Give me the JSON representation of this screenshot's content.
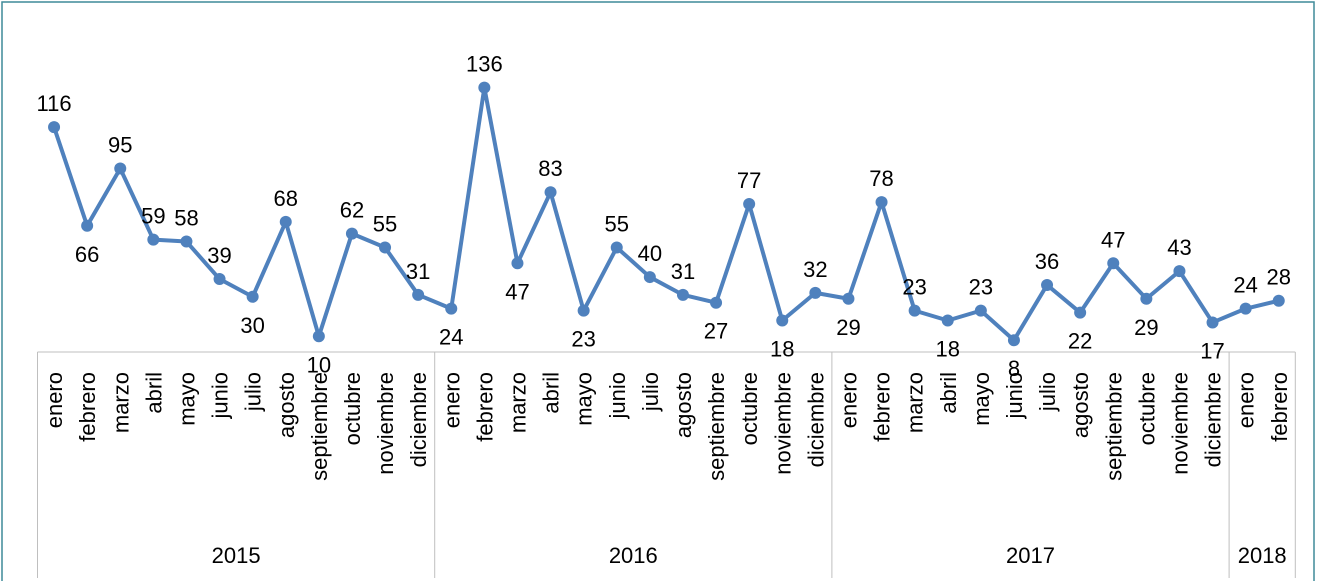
{
  "chart_data": {
    "type": "line",
    "groups": [
      {
        "label": "2015",
        "categories": [
          "enero",
          "febrero",
          "marzo",
          "abril",
          "mayo",
          "junio",
          "julio",
          "agosto",
          "septiembre",
          "octubre",
          "noviembre",
          "diciembre"
        ]
      },
      {
        "label": "2016",
        "categories": [
          "enero",
          "febrero",
          "marzo",
          "abril",
          "mayo",
          "junio",
          "julio",
          "agosto",
          "septiembre",
          "octubre",
          "noviembre",
          "diciembre"
        ]
      },
      {
        "label": "2017",
        "categories": [
          "enero",
          "febrero",
          "marzo",
          "abril",
          "mayo",
          "junio",
          "julio",
          "agosto",
          "septiembre",
          "octubre",
          "noviembre",
          "diciembre"
        ]
      },
      {
        "label": "2018",
        "categories": [
          "enero",
          "febrero"
        ]
      }
    ],
    "series": [
      {
        "color": "#4f81bd",
        "values": [
          116,
          66,
          95,
          59,
          58,
          39,
          30,
          68,
          10,
          62,
          55,
          31,
          24,
          136,
          47,
          83,
          23,
          55,
          40,
          31,
          27,
          77,
          18,
          32,
          29,
          78,
          23,
          18,
          23,
          8,
          36,
          22,
          47,
          29,
          43,
          17,
          24,
          28
        ]
      }
    ],
    "ylim": [
      0,
      150
    ]
  }
}
